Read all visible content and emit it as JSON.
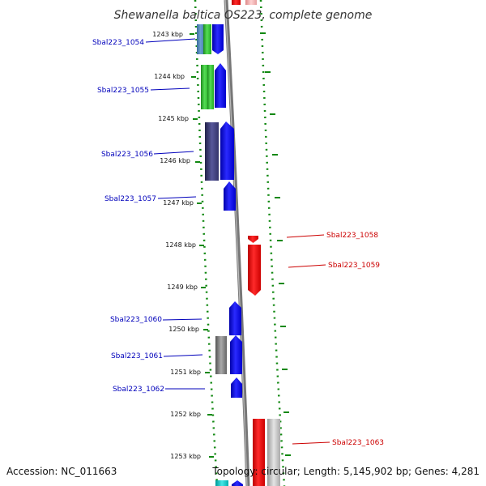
{
  "title": "Shewanella baltica OS223, complete genome",
  "accession_text": "Accession: NC_011663",
  "summary_text": "Topology: circular; Length: 5,145,902 bp; Genes: 4,281",
  "colors": {
    "forward_label": "#0000bb",
    "reverse_label": "#cc0000",
    "backbone": "#888888",
    "tick": "#118811"
  },
  "scale": {
    "unit": "kbp",
    "ticks": [
      "1243 kbp",
      "1244 kbp",
      "1245 kbp",
      "1246 kbp",
      "1247 kbp",
      "1248 kbp",
      "1249 kbp",
      "1250 kbp",
      "1251 kbp",
      "1252 kbp",
      "1253 kbp"
    ]
  },
  "genes": [
    {
      "label": "Sbal223_1054",
      "strand": "forward"
    },
    {
      "label": "Sbal223_1055",
      "strand": "forward"
    },
    {
      "label": "Sbal223_1056",
      "strand": "forward"
    },
    {
      "label": "Sbal223_1057",
      "strand": "forward"
    },
    {
      "label": "Sbal223_1058",
      "strand": "reverse"
    },
    {
      "label": "Sbal223_1059",
      "strand": "reverse"
    },
    {
      "label": "Sbal223_1060",
      "strand": "forward"
    },
    {
      "label": "Sbal223_1061",
      "strand": "forward"
    },
    {
      "label": "Sbal223_1062",
      "strand": "forward"
    },
    {
      "label": "Sbal223_1063",
      "strand": "reverse"
    }
  ]
}
